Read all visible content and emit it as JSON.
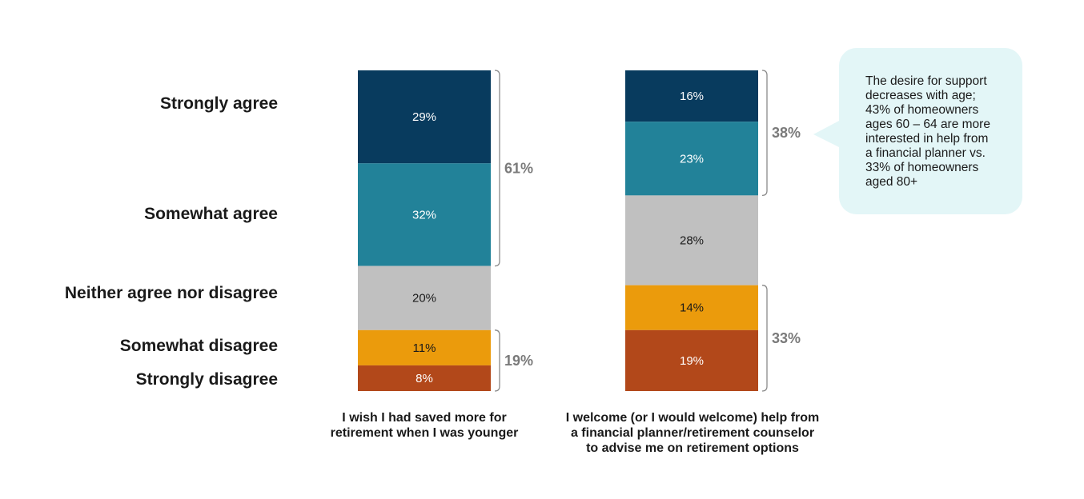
{
  "chart_data": {
    "type": "bar",
    "stacked": true,
    "categories": [
      "Strongly agree",
      "Somewhat agree",
      "Neither agree nor disagree",
      "Somewhat disagree",
      "Strongly disagree"
    ],
    "colors": [
      "#083b5e",
      "#228299",
      "#c0c0c0",
      "#eb9b0c",
      "#b2481a"
    ],
    "bars": [
      {
        "caption": "I wish I had saved more for retirement when I was younger",
        "caption_lines": [
          "I wish I had saved more for",
          "retirement when I was younger"
        ],
        "values": [
          29,
          32,
          20,
          11,
          8
        ],
        "value_labels": [
          "29%",
          "32%",
          "20%",
          "11%",
          "8%"
        ],
        "brackets": [
          {
            "from": 0,
            "to": 1,
            "label": "61%"
          },
          {
            "from": 3,
            "to": 4,
            "label": "19%"
          }
        ]
      },
      {
        "caption": "I welcome (or I would welcome) help from a financial planner/retirement counselor to advise me on retirement options",
        "caption_lines": [
          "I welcome (or I would welcome) help from",
          "a financial planner/retirement counselor",
          "to advise me on retirement options"
        ],
        "values": [
          16,
          23,
          28,
          14,
          19
        ],
        "value_labels": [
          "16%",
          "23%",
          "28%",
          "14%",
          "19%"
        ],
        "brackets": [
          {
            "from": 0,
            "to": 1,
            "label": "38%"
          },
          {
            "from": 3,
            "to": 4,
            "label": "33%"
          }
        ]
      }
    ]
  },
  "callout": {
    "lines": [
      "The desire for support",
      "decreases with age;",
      "43% of homeowners",
      "ages 60 – 64 are more",
      "interested in help from",
      "a financial  planner vs.",
      "33% of homeowners",
      "aged 80+"
    ]
  }
}
